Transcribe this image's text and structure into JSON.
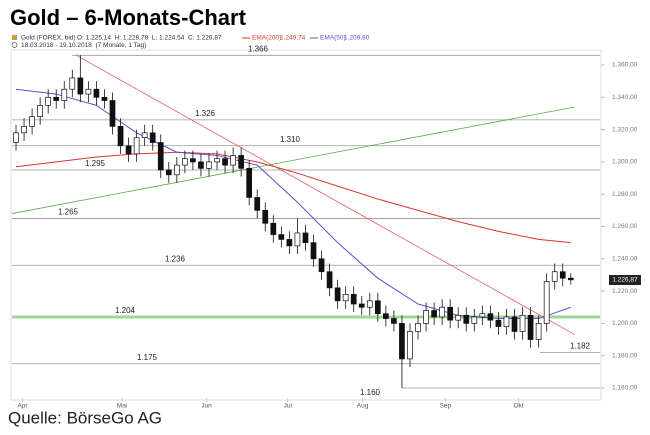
{
  "chart_data": {
    "type": "candlestick",
    "title": "Gold – 6-Monats-Chart",
    "info": {
      "instrument": "Gold (FOREX, bid)",
      "ohlc": "O: 1.225,14  H: 1.228,78  L: 1.224,54  C: 1.226,87",
      "ema200": "EMA(200)",
      "ema200_value": "1.249,74",
      "ema50": "EMA(50)",
      "ema50_value": "1.209,80",
      "range": "18.03.2018 - 19.10.2018  (7 Monate, 1 Tag)"
    },
    "source": "Quelle: BörseGo AG",
    "ylim": [
      1160,
      1360
    ],
    "yticks": [
      {
        "value": 1160,
        "label": "1.160,00"
      },
      {
        "value": 1180,
        "label": "1.180,00"
      },
      {
        "value": 1200,
        "label": "1.200,00"
      },
      {
        "value": 1220,
        "label": "1.220,00"
      },
      {
        "value": 1240,
        "label": "1.240,00"
      },
      {
        "value": 1260,
        "label": "1.260,00"
      },
      {
        "value": 1280,
        "label": "1.280,00"
      },
      {
        "value": 1300,
        "label": "1.300,00"
      },
      {
        "value": 1320,
        "label": "1.320,00"
      },
      {
        "value": 1340,
        "label": "1.340,00"
      },
      {
        "value": 1360,
        "label": "1.360,00"
      }
    ],
    "xticks": [
      {
        "value": 0.8,
        "label": "Apr"
      },
      {
        "value": 13.2,
        "label": "Mai"
      },
      {
        "value": 23.7,
        "label": "Jun"
      },
      {
        "value": 33.8,
        "label": "Jul"
      },
      {
        "value": 43.1,
        "label": "Aug"
      },
      {
        "value": 53.4,
        "label": "Sep"
      },
      {
        "value": 62.5,
        "label": "Okt"
      }
    ],
    "up_color": "#ffffff",
    "down_color": "#111111",
    "open": [
      1312,
      1318,
      1322,
      1328,
      1335,
      1340,
      1338,
      1345,
      1352,
      1342,
      1345,
      1340,
      1338,
      1322,
      1310,
      1305,
      1315,
      1318,
      1312,
      1295,
      1292,
      1298,
      1302,
      1300,
      1296,
      1300,
      1302,
      1298,
      1304,
      1296,
      1278,
      1270,
      1262,
      1255,
      1252,
      1248,
      1256,
      1250,
      1240,
      1232,
      1222,
      1214,
      1218,
      1212,
      1210,
      1214,
      1206,
      1203,
      1200,
      1178,
      1195,
      1200,
      1208,
      1204,
      1210,
      1202,
      1205,
      1200,
      1204,
      1206,
      1202,
      1198,
      1204,
      1195,
      1205,
      1190,
      1200,
      1226,
      1232,
      1228
    ],
    "high": [
      1323,
      1327,
      1333,
      1340,
      1345,
      1345,
      1350,
      1357,
      1366,
      1350,
      1350,
      1345,
      1343,
      1327,
      1315,
      1320,
      1323,
      1323,
      1317,
      1300,
      1303,
      1307,
      1307,
      1305,
      1305,
      1307,
      1307,
      1309,
      1309,
      1301,
      1283,
      1275,
      1267,
      1260,
      1257,
      1265,
      1261,
      1255,
      1245,
      1237,
      1227,
      1223,
      1223,
      1217,
      1219,
      1219,
      1211,
      1208,
      1205,
      1200,
      1205,
      1213,
      1213,
      1215,
      1215,
      1210,
      1210,
      1209,
      1211,
      1211,
      1207,
      1209,
      1209,
      1210,
      1210,
      1205,
      1231,
      1237,
      1237,
      1231
    ],
    "low": [
      1307,
      1313,
      1317,
      1323,
      1330,
      1333,
      1333,
      1340,
      1337,
      1337,
      1335,
      1333,
      1317,
      1305,
      1300,
      1300,
      1310,
      1307,
      1290,
      1287,
      1287,
      1293,
      1295,
      1291,
      1291,
      1295,
      1293,
      1293,
      1291,
      1273,
      1265,
      1257,
      1250,
      1247,
      1243,
      1243,
      1245,
      1235,
      1227,
      1217,
      1209,
      1209,
      1207,
      1205,
      1205,
      1201,
      1198,
      1195,
      1160,
      1173,
      1190,
      1195,
      1199,
      1199,
      1197,
      1197,
      1195,
      1195,
      1199,
      1197,
      1193,
      1193,
      1190,
      1190,
      1185,
      1185,
      1195,
      1221,
      1223,
      1224
    ],
    "close": [
      1318,
      1322,
      1328,
      1335,
      1340,
      1338,
      1345,
      1352,
      1342,
      1345,
      1340,
      1338,
      1322,
      1310,
      1305,
      1315,
      1318,
      1312,
      1295,
      1292,
      1298,
      1302,
      1300,
      1296,
      1300,
      1302,
      1298,
      1304,
      1296,
      1278,
      1270,
      1262,
      1255,
      1252,
      1248,
      1256,
      1250,
      1240,
      1232,
      1222,
      1214,
      1218,
      1212,
      1210,
      1214,
      1206,
      1203,
      1200,
      1178,
      1195,
      1200,
      1208,
      1204,
      1210,
      1202,
      1205,
      1200,
      1204,
      1206,
      1202,
      1198,
      1204,
      1195,
      1205,
      1190,
      1200,
      1226,
      1232,
      1228,
      1227
    ],
    "ema": [
      {
        "color": "#d9372f",
        "x": [
          0,
          5,
          10,
          15,
          20,
          25,
          30,
          35,
          40,
          45,
          50,
          55,
          60,
          65,
          69
        ],
        "values": [
          1297,
          1300,
          1303,
          1305,
          1306,
          1305,
          1300,
          1293,
          1285,
          1277,
          1270,
          1263,
          1257,
          1252,
          1250
        ]
      },
      {
        "color": "#5b52d6",
        "x": [
          0,
          5,
          10,
          15,
          20,
          25,
          30,
          35,
          40,
          45,
          50,
          55,
          60,
          65,
          69
        ],
        "values": [
          1345,
          1342,
          1335,
          1318,
          1306,
          1304,
          1298,
          1275,
          1250,
          1228,
          1212,
          1205,
          1203,
          1203,
          1210
        ]
      }
    ],
    "trendlines": [
      {
        "color": "#e06060",
        "x": [
          7.5,
          69.5
        ],
        "values": [
          1366,
          1193
        ]
      },
      {
        "color": "#55aa44",
        "x": [
          -0.5,
          69.5
        ],
        "values": [
          1268,
          1334
        ]
      }
    ],
    "levels": [
      {
        "value": 1366,
        "label": "1.366",
        "color": "#999999"
      },
      {
        "value": 1326,
        "label": "1.326",
        "color": "#999999"
      },
      {
        "value": 1310,
        "label": "1.310",
        "color": "#999999"
      },
      {
        "value": 1295,
        "label": "1.295",
        "color": "#999999"
      },
      {
        "value": 1265,
        "label": "1.265",
        "color": "#999999"
      },
      {
        "value": 1236,
        "label": "1.236",
        "color": "#999999"
      },
      {
        "value": 1204,
        "label": "1.204",
        "color": "#66bb55"
      },
      {
        "value": 1182,
        "label": "1.182",
        "color": "#999999"
      },
      {
        "value": 1175,
        "label": "1.175",
        "color": "#999999"
      },
      {
        "value": 1160,
        "label": "1.160",
        "color": "#999999"
      }
    ],
    "last": {
      "value": 1226.87,
      "label": "1.226,87"
    }
  }
}
